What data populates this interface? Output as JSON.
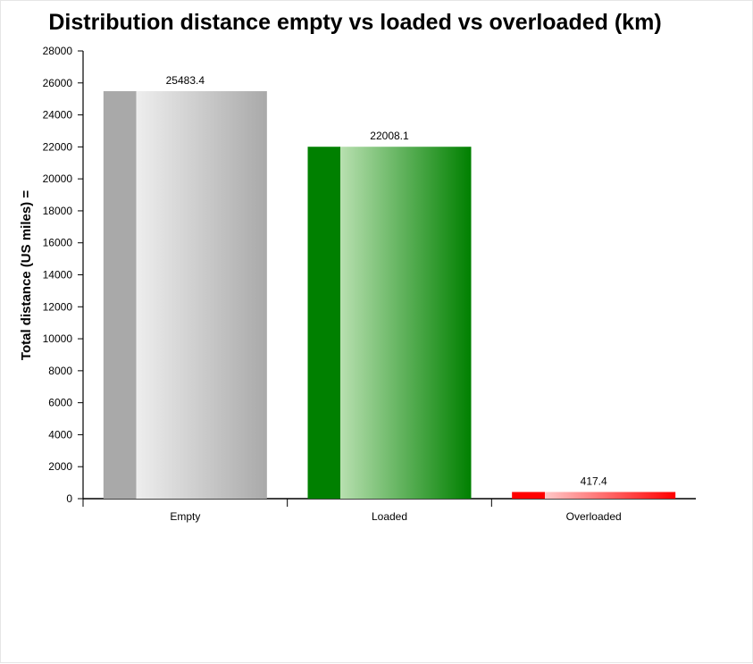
{
  "chart_data": {
    "type": "bar",
    "title": "Distribution distance empty vs loaded vs overloaded (km)",
    "xlabel": "",
    "ylabel": "Total distance (US miles) =",
    "categories": [
      "Empty",
      "Loaded",
      "Overloaded"
    ],
    "values": [
      25483.4,
      22008.1,
      417.4
    ],
    "value_labels": [
      "25483.4",
      "22008.1",
      "417.4"
    ],
    "ylim": [
      0,
      28000
    ],
    "yticks": [
      0,
      2000,
      4000,
      6000,
      8000,
      10000,
      12000,
      14000,
      16000,
      18000,
      20000,
      22000,
      24000,
      26000,
      28000
    ],
    "colors": [
      "#a9a9a9",
      "#008000",
      "#ff0000"
    ],
    "grid": false,
    "legend": "none"
  }
}
